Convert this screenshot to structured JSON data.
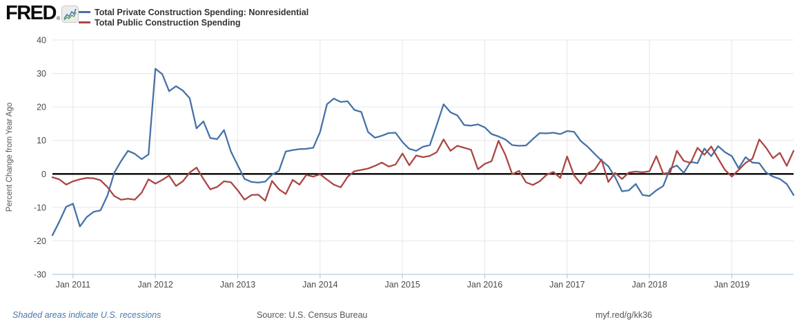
{
  "header": {
    "logo_text": "FRED",
    "logo_reg": "®"
  },
  "footer": {
    "recession_note": "Shaded areas indicate U.S. recessions",
    "source": "Source: U.S. Census Bureau",
    "permalink": "myf.red/g/kk36",
    "note_color": "#4a77ab",
    "text_color": "#555555"
  },
  "chart_data": {
    "type": "line",
    "title": "",
    "ylabel": "Percent Change from Year Ago",
    "ylim": [
      -30,
      40
    ],
    "ytick_interval": 10,
    "grid": true,
    "zero_line": true,
    "frequency": "monthly",
    "x_start": "2010-10",
    "x_end": "2019-10",
    "x_tick_labels": [
      "Jan 2011",
      "Jan 2012",
      "Jan 2013",
      "Jan 2014",
      "Jan 2015",
      "Jan 2016",
      "Jan 2017",
      "Jan 2018",
      "Jan 2019"
    ],
    "grid_color": "#e6e6e6",
    "axis_color": "#b8cce0",
    "label_color": "#494949",
    "series": [
      {
        "name": "Total Private Construction Spending: Nonresidential",
        "color": "#4572a7",
        "values": [
          -18.3,
          -14.3,
          -9.8,
          -8.9,
          -15.7,
          -12.9,
          -11.3,
          -10.9,
          -6.5,
          0.3,
          3.8,
          6.9,
          6.0,
          4.4,
          5.8,
          31.4,
          29.8,
          24.7,
          26.2,
          24.9,
          22.6,
          13.6,
          15.7,
          10.7,
          10.4,
          13.1,
          6.7,
          2.6,
          -1.5,
          -2.4,
          -2.6,
          -2.3,
          -0.2,
          0.9,
          6.7,
          7.1,
          7.4,
          7.5,
          7.8,
          12.5,
          20.8,
          22.5,
          21.5,
          21.7,
          19.1,
          18.5,
          12.5,
          10.8,
          11.4,
          12.2,
          12.3,
          9.5,
          7.5,
          6.9,
          8.1,
          8.6,
          14.6,
          20.8,
          18.4,
          17.5,
          14.6,
          14.4,
          14.8,
          13.9,
          11.9,
          11.2,
          10.3,
          8.6,
          8.4,
          8.5,
          10.4,
          12.2,
          12.1,
          12.3,
          11.9,
          12.8,
          12.6,
          9.8,
          8.1,
          6.0,
          4.0,
          2.3,
          -1.0,
          -5.2,
          -4.9,
          -3.0,
          -6.3,
          -6.6,
          -4.9,
          -3.6,
          1.6,
          2.5,
          0.3,
          3.6,
          3.2,
          7.6,
          5.3,
          8.3,
          6.5,
          5.3,
          1.7,
          5.0,
          3.4,
          3.2,
          0.4,
          -0.8,
          -1.5,
          -3.0,
          -6.3
        ]
      },
      {
        "name": "Total Public Construction Spending",
        "color": "#aa4643",
        "values": [
          -1.0,
          -1.6,
          -3.2,
          -2.2,
          -1.6,
          -1.2,
          -1.3,
          -1.9,
          -3.9,
          -6.6,
          -7.7,
          -7.4,
          -7.7,
          -5.6,
          -1.6,
          -2.9,
          -1.8,
          -0.5,
          -3.6,
          -2.2,
          0.4,
          1.9,
          -1.5,
          -4.6,
          -3.9,
          -2.2,
          -2.5,
          -4.9,
          -7.7,
          -6.3,
          -6.2,
          -8.0,
          -2.1,
          -4.6,
          -6.0,
          -1.8,
          -3.2,
          -0.3,
          -0.8,
          -0.1,
          -1.7,
          -3.2,
          -4.0,
          -0.9,
          0.8,
          1.2,
          1.6,
          2.4,
          3.4,
          2.2,
          2.8,
          6.1,
          2.6,
          5.5,
          5.0,
          5.4,
          6.5,
          10.3,
          6.9,
          8.4,
          7.8,
          7.2,
          1.4,
          3.0,
          3.8,
          9.9,
          5.7,
          -0.1,
          0.9,
          -2.5,
          -3.3,
          -2.2,
          -0.3,
          0.6,
          -1.2,
          5.2,
          -0.4,
          -2.9,
          0.2,
          1.2,
          4.3,
          -2.4,
          0.3,
          -1.5,
          0.4,
          0.7,
          0.5,
          0.8,
          5.3,
          0.1,
          0.3,
          6.9,
          3.9,
          3.3,
          7.8,
          5.7,
          8.2,
          4.6,
          1.2,
          -0.8,
          1.2,
          3.3,
          4.5,
          10.3,
          7.8,
          4.7,
          6.3,
          2.4,
          6.9
        ]
      }
    ]
  }
}
